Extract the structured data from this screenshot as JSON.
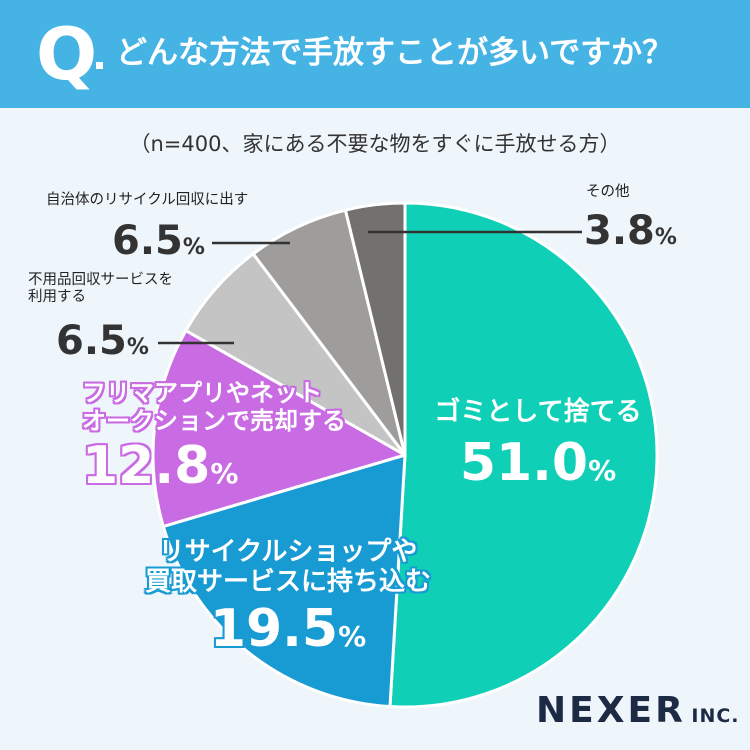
{
  "header": {
    "q_mark": "Q",
    "question": "どんな方法で手放すことが多いですか？"
  },
  "chart_data": {
    "type": "pie",
    "subtitle": "（n=400、家にある不要な物をすぐに手放せる方）",
    "slices": [
      {
        "label": "ゴミとして捨てる",
        "value": 51.0,
        "display": "51.0",
        "color": "#0fd0b6"
      },
      {
        "label": "リサイクルショップや買取サービスに持ち込む",
        "label_line1": "リサイクルショップや",
        "label_line2": "買取サービスに持ち込む",
        "value": 19.5,
        "display": "19.5",
        "color": "#189ad3"
      },
      {
        "label": "フリマアプリやネットオークションで売却する",
        "label_line1": "フリマアプリやネット",
        "label_line2": "オークションで売却する",
        "value": 12.8,
        "display": "12.8",
        "color": "#c96be2"
      },
      {
        "label": "不用品回収サービスを利用する",
        "label_line1": "不用品回収サービスを",
        "label_line2": "利用する",
        "value": 6.5,
        "display": "6.5",
        "color": "#c4c4c4"
      },
      {
        "label": "自治体のリサイクル回収に出す",
        "value": 6.5,
        "display": "6.5",
        "color": "#9e9d9b"
      },
      {
        "label": "その他",
        "value": 3.8,
        "display": "3.8",
        "color": "#727170"
      }
    ],
    "unit": "%"
  },
  "brand": {
    "name": "NEXER",
    "suffix": "INC."
  }
}
